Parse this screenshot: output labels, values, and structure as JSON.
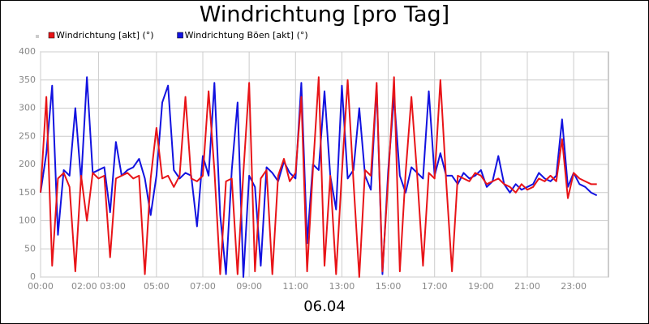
{
  "chart_data": {
    "type": "line",
    "title": "Windrichtung [pro Tag]",
    "x_label": "06.04",
    "x": [
      0,
      0.25,
      0.5,
      0.75,
      1,
      1.25,
      1.5,
      1.75,
      2,
      2.25,
      2.5,
      2.75,
      3,
      3.25,
      3.5,
      3.75,
      4,
      4.25,
      4.5,
      4.75,
      5,
      5.25,
      5.5,
      5.75,
      6,
      6.25,
      6.5,
      6.75,
      7,
      7.25,
      7.5,
      7.75,
      8,
      8.25,
      8.5,
      8.75,
      9,
      9.25,
      9.5,
      9.75,
      10,
      10.25,
      10.5,
      10.75,
      11,
      11.25,
      11.5,
      11.75,
      12,
      12.25,
      12.5,
      12.75,
      13,
      13.25,
      13.5,
      13.75,
      14,
      14.25,
      14.5,
      14.75,
      15,
      15.25,
      15.5,
      15.75,
      16,
      16.25,
      16.5,
      16.75,
      17,
      17.25,
      17.5,
      17.75,
      18,
      18.25,
      18.5,
      18.75,
      19,
      19.25,
      19.5,
      19.75,
      20,
      20.25,
      20.5,
      20.75,
      21,
      21.25,
      21.5,
      21.75,
      22,
      22.25,
      22.5,
      22.75,
      23,
      23.25,
      23.5,
      23.75,
      24
    ],
    "series": [
      {
        "name": "Windrichtung Böen [akt] (°)",
        "color": "#1212e0",
        "values": [
          150,
          220,
          340,
          75,
          190,
          180,
          300,
          170,
          355,
          185,
          190,
          195,
          115,
          240,
          180,
          190,
          195,
          210,
          175,
          110,
          180,
          310,
          340,
          190,
          175,
          185,
          180,
          90,
          215,
          180,
          345,
          110,
          5,
          190,
          310,
          0,
          180,
          160,
          20,
          195,
          185,
          170,
          205,
          185,
          175,
          345,
          60,
          200,
          190,
          330,
          180,
          120,
          340,
          175,
          190,
          300,
          180,
          155,
          340,
          5,
          190,
          320,
          180,
          150,
          195,
          185,
          175,
          330,
          180,
          220,
          180,
          180,
          165,
          185,
          175,
          180,
          190,
          160,
          170,
          215,
          165,
          150,
          165,
          155,
          160,
          165,
          185,
          175,
          170,
          180,
          280,
          160,
          185,
          165,
          160,
          150,
          145
        ]
      },
      {
        "name": "Windrichtung [akt] (°)",
        "color": "#e81418",
        "values": [
          150,
          320,
          20,
          175,
          185,
          160,
          10,
          180,
          100,
          185,
          175,
          180,
          35,
          175,
          180,
          185,
          175,
          180,
          5,
          175,
          265,
          175,
          180,
          160,
          180,
          320,
          175,
          170,
          180,
          330,
          190,
          5,
          170,
          175,
          5,
          185,
          345,
          10,
          175,
          190,
          5,
          180,
          210,
          170,
          185,
          320,
          10,
          190,
          355,
          20,
          180,
          5,
          185,
          350,
          170,
          0,
          190,
          180,
          345,
          10,
          175,
          355,
          10,
          185,
          320,
          180,
          20,
          185,
          175,
          350,
          170,
          10,
          180,
          175,
          170,
          185,
          180,
          165,
          170,
          175,
          165,
          160,
          150,
          165,
          155,
          160,
          175,
          170,
          180,
          170,
          245,
          140,
          185,
          175,
          170,
          165,
          165
        ]
      }
    ],
    "legend_order": [
      1,
      0
    ],
    "xlim": [
      0,
      24.5
    ],
    "xticks": [
      {
        "value": 0,
        "label": "00:00"
      },
      {
        "value": 2.5,
        "label": "02:00 03:00"
      },
      {
        "value": 5,
        "label": "05:00"
      },
      {
        "value": 7,
        "label": "07:00"
      },
      {
        "value": 9,
        "label": "09:00"
      },
      {
        "value": 11,
        "label": "11:00"
      },
      {
        "value": 13,
        "label": "13:00"
      },
      {
        "value": 15,
        "label": "15:00"
      },
      {
        "value": 17,
        "label": "17:00"
      },
      {
        "value": 19,
        "label": "19:00"
      },
      {
        "value": 21,
        "label": "21:00"
      },
      {
        "value": 23,
        "label": "23:00"
      }
    ],
    "ylim": [
      0,
      400
    ],
    "yticks": [
      0,
      50,
      100,
      150,
      200,
      250,
      300,
      350,
      400
    ],
    "grid": true
  }
}
